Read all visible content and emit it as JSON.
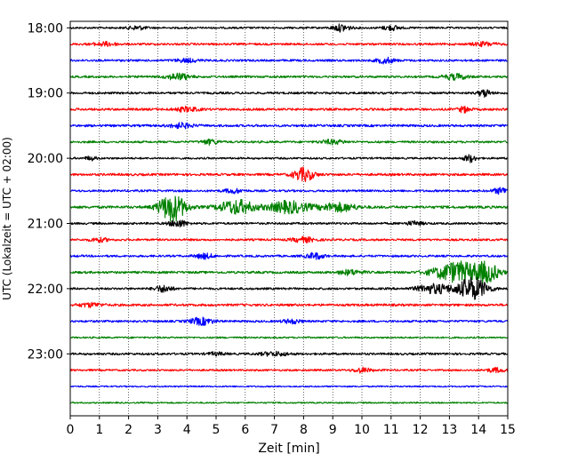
{
  "chart_data": {
    "type": "line",
    "title": "",
    "xlabel": "Zeit  [min]",
    "ylabel": "UTC (Lokalzeit = UTC + 02:00)",
    "xlim": [
      0,
      15
    ],
    "x_ticks": [
      "0",
      "1",
      "2",
      "3",
      "4",
      "5",
      "6",
      "7",
      "8",
      "9",
      "10",
      "11",
      "12",
      "13",
      "14",
      "15"
    ],
    "y_ticks": [
      {
        "label": "18:00",
        "hour": 18.0
      },
      {
        "label": "19:00",
        "hour": 19.0
      },
      {
        "label": "20:00",
        "hour": 20.0
      },
      {
        "label": "21:00",
        "hour": 21.0
      },
      {
        "label": "22:00",
        "hour": 22.0
      },
      {
        "label": "23:00",
        "hour": 23.0
      }
    ],
    "ylim_hours": [
      17.9,
      23.95
    ],
    "grid": "vertical dotted at each minute",
    "trace_colors": [
      "#000000",
      "#ff0000",
      "#0000ff",
      "#008000"
    ],
    "traces": [
      {
        "start": "18:00",
        "color": "#000000",
        "noise": 0.4,
        "events": [
          {
            "t": 9.3,
            "a": 1.5,
            "w": 0.3
          },
          {
            "t": 11.0,
            "a": 1.0,
            "w": 0.3
          },
          {
            "t": 2.3,
            "a": 0.8,
            "w": 0.3
          }
        ]
      },
      {
        "start": "18:15",
        "color": "#ff0000",
        "noise": 0.45,
        "events": [
          {
            "t": 1.2,
            "a": 0.8,
            "w": 0.4
          },
          {
            "t": 14.2,
            "a": 0.8,
            "w": 0.4
          }
        ]
      },
      {
        "start": "18:30",
        "color": "#0000ff",
        "noise": 0.45,
        "events": [
          {
            "t": 10.8,
            "a": 1.2,
            "w": 0.3
          },
          {
            "t": 4.0,
            "a": 0.7,
            "w": 0.4
          }
        ]
      },
      {
        "start": "18:45",
        "color": "#008000",
        "noise": 0.45,
        "events": [
          {
            "t": 3.7,
            "a": 1.4,
            "w": 0.4
          },
          {
            "t": 13.2,
            "a": 1.2,
            "w": 0.4
          }
        ]
      },
      {
        "start": "19:00",
        "color": "#000000",
        "noise": 0.45,
        "events": [
          {
            "t": 14.2,
            "a": 1.6,
            "w": 0.2
          }
        ]
      },
      {
        "start": "19:15",
        "color": "#ff0000",
        "noise": 0.5,
        "events": [
          {
            "t": 4.0,
            "a": 0.9,
            "w": 0.4
          },
          {
            "t": 13.5,
            "a": 1.2,
            "w": 0.2
          }
        ]
      },
      {
        "start": "19:30",
        "color": "#0000ff",
        "noise": 0.5,
        "events": [
          {
            "t": 3.8,
            "a": 1.0,
            "w": 0.4
          }
        ]
      },
      {
        "start": "19:45",
        "color": "#008000",
        "noise": 0.45,
        "events": [
          {
            "t": 4.8,
            "a": 1.0,
            "w": 0.3
          },
          {
            "t": 9.0,
            "a": 0.9,
            "w": 0.4
          }
        ]
      },
      {
        "start": "20:00",
        "color": "#000000",
        "noise": 0.4,
        "events": [
          {
            "t": 13.7,
            "a": 1.6,
            "w": 0.2
          },
          {
            "t": 0.7,
            "a": 0.8,
            "w": 0.2
          }
        ]
      },
      {
        "start": "20:15",
        "color": "#ff0000",
        "noise": 0.5,
        "events": [
          {
            "t": 8.0,
            "a": 2.8,
            "w": 0.35
          }
        ]
      },
      {
        "start": "20:30",
        "color": "#0000ff",
        "noise": 0.45,
        "events": [
          {
            "t": 14.8,
            "a": 1.3,
            "w": 0.3
          },
          {
            "t": 5.6,
            "a": 0.9,
            "w": 0.3
          }
        ]
      },
      {
        "start": "20:45",
        "color": "#008000",
        "noise": 0.55,
        "events": [
          {
            "t": 3.5,
            "a": 6.0,
            "w": 0.45
          },
          {
            "t": 5.7,
            "a": 3.0,
            "w": 0.6
          },
          {
            "t": 7.5,
            "a": 2.5,
            "w": 0.7
          },
          {
            "t": 9.2,
            "a": 1.8,
            "w": 0.6
          }
        ]
      },
      {
        "start": "21:00",
        "color": "#000000",
        "noise": 0.45,
        "events": [
          {
            "t": 3.7,
            "a": 1.5,
            "w": 0.3
          },
          {
            "t": 11.8,
            "a": 0.8,
            "w": 0.3
          }
        ]
      },
      {
        "start": "21:15",
        "color": "#ff0000",
        "noise": 0.45,
        "events": [
          {
            "t": 8.0,
            "a": 1.0,
            "w": 0.4
          },
          {
            "t": 1.0,
            "a": 0.8,
            "w": 0.3
          }
        ]
      },
      {
        "start": "21:30",
        "color": "#0000ff",
        "noise": 0.45,
        "events": [
          {
            "t": 4.6,
            "a": 1.1,
            "w": 0.3
          },
          {
            "t": 8.4,
            "a": 1.3,
            "w": 0.3
          }
        ]
      },
      {
        "start": "21:45",
        "color": "#008000",
        "noise": 0.5,
        "events": [
          {
            "t": 13.3,
            "a": 4.5,
            "w": 0.8
          },
          {
            "t": 14.3,
            "a": 3.5,
            "w": 0.4
          },
          {
            "t": 9.6,
            "a": 1.0,
            "w": 0.4
          }
        ]
      },
      {
        "start": "22:00",
        "color": "#000000",
        "noise": 0.45,
        "events": [
          {
            "t": 13.8,
            "a": 5.0,
            "w": 0.5
          },
          {
            "t": 3.2,
            "a": 1.4,
            "w": 0.3
          },
          {
            "t": 12.5,
            "a": 2.0,
            "w": 0.6
          }
        ]
      },
      {
        "start": "22:15",
        "color": "#ff0000",
        "noise": 0.5,
        "events": [
          {
            "t": 0.7,
            "a": 0.8,
            "w": 0.4
          }
        ]
      },
      {
        "start": "22:30",
        "color": "#0000ff",
        "noise": 0.45,
        "events": [
          {
            "t": 4.5,
            "a": 1.5,
            "w": 0.4
          },
          {
            "t": 7.6,
            "a": 0.9,
            "w": 0.3
          }
        ]
      },
      {
        "start": "22:45",
        "color": "#008000",
        "noise": 0.35,
        "events": []
      },
      {
        "start": "23:00",
        "color": "#000000",
        "noise": 0.45,
        "events": [
          {
            "t": 7.0,
            "a": 0.8,
            "w": 0.5
          },
          {
            "t": 5.0,
            "a": 0.6,
            "w": 0.3
          }
        ]
      },
      {
        "start": "23:15",
        "color": "#ff0000",
        "noise": 0.4,
        "events": [
          {
            "t": 10.0,
            "a": 1.0,
            "w": 0.3
          },
          {
            "t": 14.6,
            "a": 0.9,
            "w": 0.3
          }
        ]
      },
      {
        "start": "23:30",
        "color": "#0000ff",
        "noise": 0.3,
        "events": []
      },
      {
        "start": "23:45",
        "color": "#008000",
        "noise": 0.3,
        "events": []
      }
    ]
  }
}
